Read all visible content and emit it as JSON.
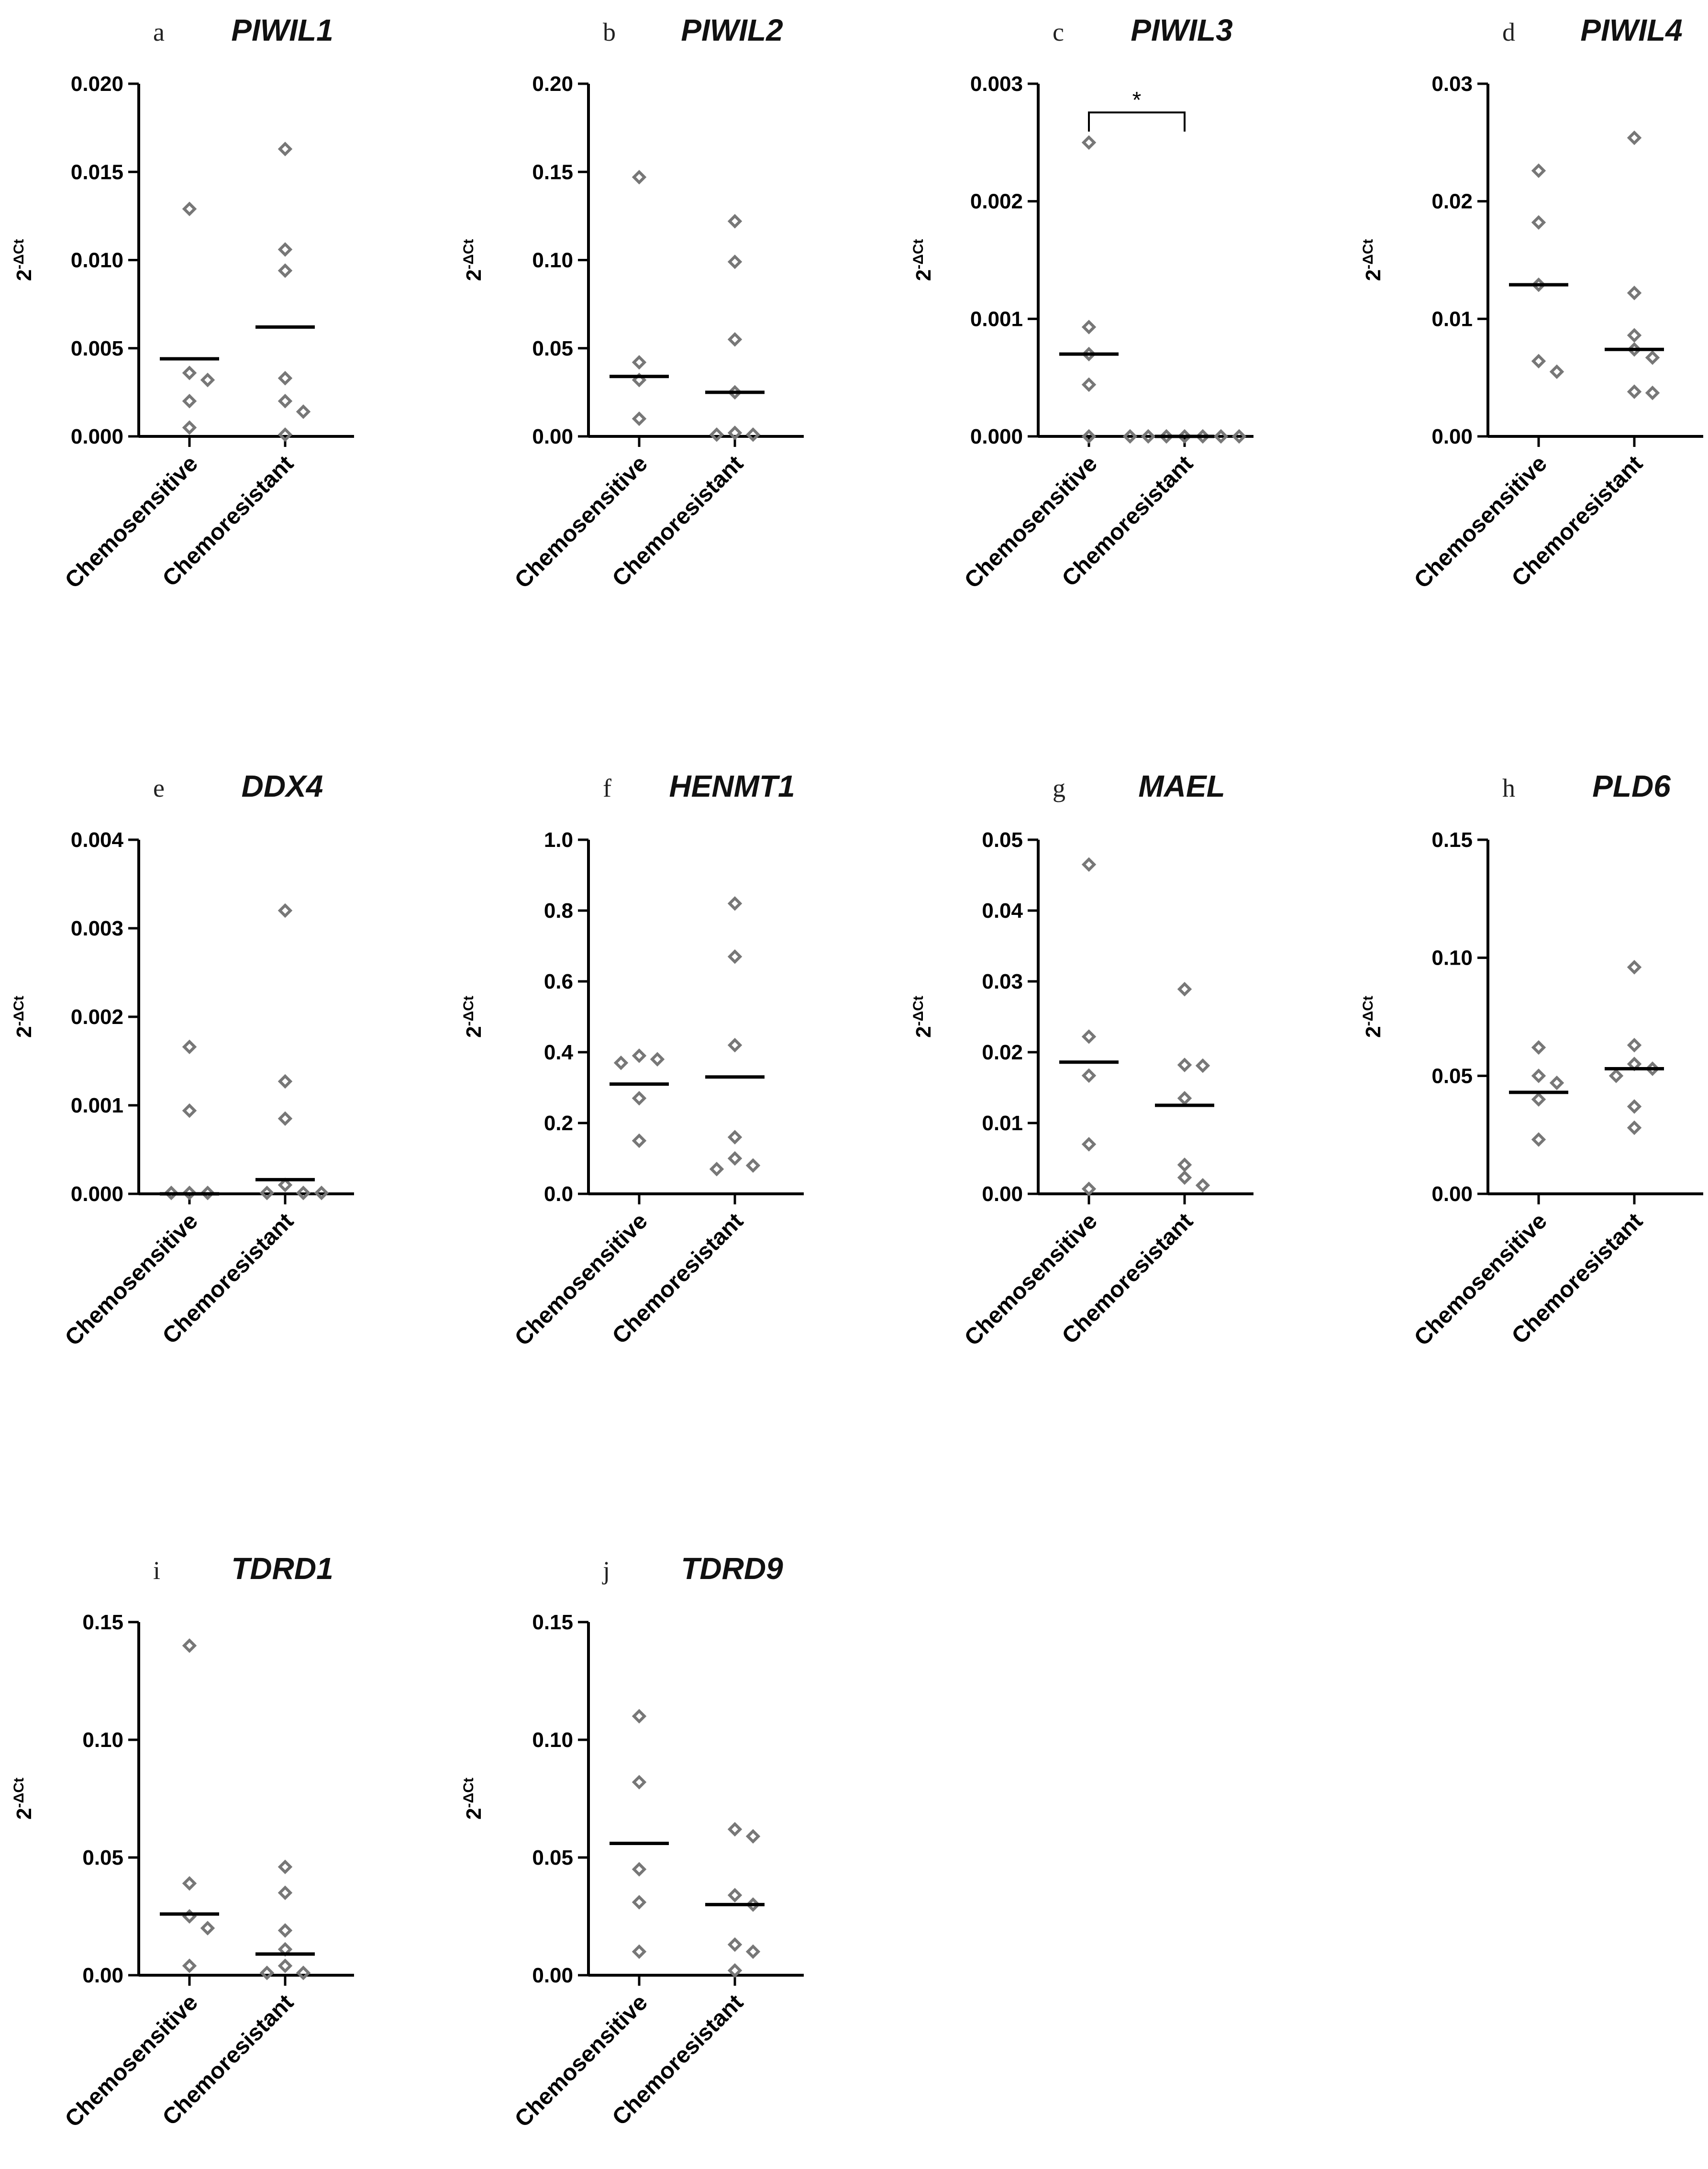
{
  "figure_ylabel": {
    "base": "2",
    "sup": "-ΔCt"
  },
  "chart_data": [
    {
      "panel": "a",
      "title": "PIWIL1",
      "type": "scatter",
      "categories": [
        "Chemosensitive",
        "Chemoresistant"
      ],
      "ylim": [
        0,
        0.02
      ],
      "yticks": [
        "0.000",
        "0.005",
        "0.010",
        "0.015",
        "0.020"
      ],
      "series": [
        {
          "name": "Chemosensitive",
          "values": [
            0.0129,
            0.0036,
            0.0032,
            0.002,
            0.0005
          ],
          "mean": 0.0044
        },
        {
          "name": "Chemoresistant",
          "values": [
            0.0163,
            0.0106,
            0.0094,
            0.0033,
            0.002,
            0.0014,
            0.0001
          ],
          "mean": 0.0062
        }
      ]
    },
    {
      "panel": "b",
      "title": "PIWIL2",
      "type": "scatter",
      "categories": [
        "Chemosensitive",
        "Chemoresistant"
      ],
      "ylim": [
        0,
        0.2
      ],
      "yticks": [
        "0.00",
        "0.05",
        "0.10",
        "0.15",
        "0.20"
      ],
      "series": [
        {
          "name": "Chemosensitive",
          "values": [
            0.147,
            0.042,
            0.032,
            0.01
          ],
          "mean": 0.034
        },
        {
          "name": "Chemoresistant",
          "values": [
            0.122,
            0.099,
            0.055,
            0.025,
            0.002,
            0.001,
            0.001
          ],
          "mean": 0.025
        }
      ]
    },
    {
      "panel": "c",
      "title": "PIWIL3",
      "type": "scatter",
      "categories": [
        "Chemosensitive",
        "Chemoresistant"
      ],
      "ylim": [
        0,
        0.003
      ],
      "yticks": [
        "0.000",
        "0.001",
        "0.002",
        "0.003"
      ],
      "significance": "*",
      "series": [
        {
          "name": "Chemosensitive",
          "values": [
            0.0025,
            0.00093,
            0.0007,
            0.00044,
            0.0
          ],
          "mean": 0.0007
        },
        {
          "name": "Chemoresistant",
          "values": [
            0,
            0,
            0,
            0,
            0,
            0,
            0
          ],
          "mean": 0.0
        }
      ]
    },
    {
      "panel": "d",
      "title": "PIWIL4",
      "type": "scatter",
      "categories": [
        "Chemosensitive",
        "Chemoresistant"
      ],
      "ylim": [
        0,
        0.03
      ],
      "yticks": [
        "0.00",
        "0.01",
        "0.02",
        "0.03"
      ],
      "series": [
        {
          "name": "Chemosensitive",
          "values": [
            0.0226,
            0.0182,
            0.0129,
            0.0064,
            0.0055
          ],
          "mean": 0.0129
        },
        {
          "name": "Chemoresistant",
          "values": [
            0.0254,
            0.0122,
            0.0086,
            0.0074,
            0.0067,
            0.0038,
            0.0037
          ],
          "mean": 0.0074
        }
      ]
    },
    {
      "panel": "e",
      "title": "DDX4",
      "type": "scatter",
      "categories": [
        "Chemosensitive",
        "Chemoresistant"
      ],
      "ylim": [
        0,
        0.004
      ],
      "yticks": [
        "0.000",
        "0.001",
        "0.002",
        "0.003",
        "0.004"
      ],
      "series": [
        {
          "name": "Chemosensitive",
          "values": [
            0.00166,
            0.00094,
            1e-05,
            1e-05,
            1e-05
          ],
          "mean": 0.0
        },
        {
          "name": "Chemoresistant",
          "values": [
            0.0032,
            0.00127,
            0.00085,
            0.0001,
            1e-05,
            1e-05,
            1e-05
          ],
          "mean": 0.00016
        }
      ]
    },
    {
      "panel": "f",
      "title": "HENMT1",
      "type": "scatter",
      "categories": [
        "Chemosensitive",
        "Chemoresistant"
      ],
      "ylim": [
        0,
        1.0
      ],
      "yticks": [
        "0.0",
        "0.2",
        "0.4",
        "0.6",
        "0.8",
        "1.0"
      ],
      "series": [
        {
          "name": "Chemosensitive",
          "values": [
            0.39,
            0.38,
            0.37,
            0.27,
            0.15
          ],
          "mean": 0.31
        },
        {
          "name": "Chemoresistant",
          "values": [
            0.82,
            0.67,
            0.42,
            0.16,
            0.1,
            0.08,
            0.07
          ],
          "mean": 0.33
        }
      ]
    },
    {
      "panel": "g",
      "title": "MAEL",
      "type": "scatter",
      "categories": [
        "Chemosensitive",
        "Chemoresistant"
      ],
      "ylim": [
        0,
        0.05
      ],
      "yticks": [
        "0.00",
        "0.01",
        "0.02",
        "0.03",
        "0.04",
        "0.05"
      ],
      "series": [
        {
          "name": "Chemosensitive",
          "values": [
            0.0465,
            0.0222,
            0.0167,
            0.007,
            0.0007
          ],
          "mean": 0.0186
        },
        {
          "name": "Chemoresistant",
          "values": [
            0.0289,
            0.0182,
            0.0181,
            0.0135,
            0.0041,
            0.0023,
            0.0012
          ],
          "mean": 0.0125
        }
      ]
    },
    {
      "panel": "h",
      "title": "PLD6",
      "type": "scatter",
      "categories": [
        "Chemosensitive",
        "Chemoresistant"
      ],
      "ylim": [
        0,
        0.15
      ],
      "yticks": [
        "0.00",
        "0.05",
        "0.10",
        "0.15"
      ],
      "series": [
        {
          "name": "Chemosensitive",
          "values": [
            0.062,
            0.05,
            0.047,
            0.04,
            0.023
          ],
          "mean": 0.043
        },
        {
          "name": "Chemoresistant",
          "values": [
            0.096,
            0.063,
            0.055,
            0.053,
            0.05,
            0.037,
            0.028
          ],
          "mean": 0.053
        }
      ]
    },
    {
      "panel": "i",
      "title": "TDRD1",
      "type": "scatter",
      "categories": [
        "Chemosensitive",
        "Chemoresistant"
      ],
      "ylim": [
        0,
        0.15
      ],
      "yticks": [
        "0.00",
        "0.05",
        "0.10",
        "0.15"
      ],
      "series": [
        {
          "name": "Chemosensitive",
          "values": [
            0.14,
            0.039,
            0.025,
            0.02,
            0.004
          ],
          "mean": 0.026
        },
        {
          "name": "Chemoresistant",
          "values": [
            0.046,
            0.035,
            0.019,
            0.011,
            0.004,
            0.001,
            0.001
          ],
          "mean": 0.009
        }
      ]
    },
    {
      "panel": "j",
      "title": "TDRD9",
      "type": "scatter",
      "categories": [
        "Chemosensitive",
        "Chemoresistant"
      ],
      "ylim": [
        0,
        0.15
      ],
      "yticks": [
        "0.00",
        "0.05",
        "0.10",
        "0.15"
      ],
      "series": [
        {
          "name": "Chemosensitive",
          "values": [
            0.11,
            0.082,
            0.045,
            0.031,
            0.01
          ],
          "mean": 0.056
        },
        {
          "name": "Chemoresistant",
          "values": [
            0.062,
            0.059,
            0.034,
            0.03,
            0.013,
            0.01,
            0.002
          ],
          "mean": 0.03
        }
      ]
    }
  ]
}
